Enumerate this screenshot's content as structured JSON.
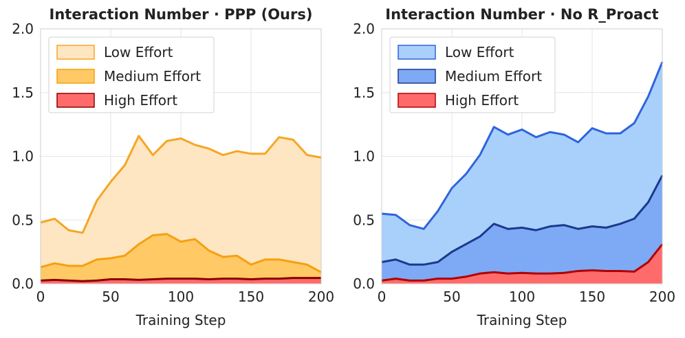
{
  "chart_data": [
    {
      "type": "area",
      "title": "Interaction Number · PPP (Ours)",
      "xlabel": "Training Step",
      "ylabel": "",
      "xlim": [
        0,
        200
      ],
      "ylim": [
        0,
        2.0
      ],
      "xticks": [
        "0",
        "50",
        "100",
        "150",
        "200"
      ],
      "yticks": [
        "0.0",
        "0.5",
        "1.0",
        "1.5",
        "2.0"
      ],
      "grid": true,
      "legend_position": "top-left",
      "x": [
        0,
        10,
        20,
        30,
        40,
        50,
        60,
        70,
        80,
        90,
        100,
        110,
        120,
        130,
        140,
        150,
        160,
        170,
        180,
        190,
        200
      ],
      "series": [
        {
          "name": "Low Effort",
          "fill": "#fee6c2",
          "line": "#f5a623",
          "values": [
            0.48,
            0.51,
            0.42,
            0.4,
            0.65,
            0.8,
            0.93,
            1.16,
            1.01,
            1.12,
            1.14,
            1.09,
            1.06,
            1.01,
            1.04,
            1.02,
            1.02,
            1.15,
            1.13,
            1.01,
            0.99
          ]
        },
        {
          "name": "Medium Effort",
          "fill": "#ffc966",
          "line": "#f5a00f",
          "values": [
            0.13,
            0.16,
            0.14,
            0.14,
            0.19,
            0.2,
            0.22,
            0.31,
            0.38,
            0.39,
            0.33,
            0.35,
            0.26,
            0.21,
            0.22,
            0.15,
            0.19,
            0.19,
            0.17,
            0.15,
            0.09
          ]
        },
        {
          "name": "High Effort",
          "fill": "#ff6b6b",
          "line": "#8b0000",
          "values": [
            0.025,
            0.03,
            0.025,
            0.02,
            0.025,
            0.035,
            0.035,
            0.03,
            0.035,
            0.04,
            0.04,
            0.04,
            0.035,
            0.04,
            0.04,
            0.035,
            0.04,
            0.04,
            0.045,
            0.045,
            0.045
          ]
        }
      ]
    },
    {
      "type": "area",
      "title": "Interaction Number · No R_Proact",
      "xlabel": "Training Step",
      "ylabel": "",
      "xlim": [
        0,
        200
      ],
      "ylim": [
        0,
        2.0
      ],
      "xticks": [
        "0",
        "50",
        "100",
        "150",
        "200"
      ],
      "yticks": [
        "0.0",
        "0.5",
        "1.0",
        "1.5",
        "2.0"
      ],
      "grid": true,
      "legend_position": "top-left",
      "x": [
        0,
        10,
        20,
        30,
        40,
        50,
        60,
        70,
        80,
        90,
        100,
        110,
        120,
        130,
        140,
        150,
        160,
        170,
        180,
        190,
        200
      ],
      "series": [
        {
          "name": "Low Effort",
          "fill": "#a9d0fb",
          "line": "#2f63dc",
          "values": [
            0.55,
            0.54,
            0.46,
            0.43,
            0.57,
            0.75,
            0.86,
            1.01,
            1.23,
            1.17,
            1.21,
            1.15,
            1.19,
            1.17,
            1.11,
            1.22,
            1.18,
            1.18,
            1.26,
            1.47,
            1.74
          ]
        },
        {
          "name": "Medium Effort",
          "fill": "#7ea9f5",
          "line": "#1a3a8c",
          "values": [
            0.17,
            0.19,
            0.15,
            0.15,
            0.17,
            0.25,
            0.31,
            0.37,
            0.47,
            0.43,
            0.44,
            0.42,
            0.45,
            0.46,
            0.43,
            0.45,
            0.44,
            0.47,
            0.51,
            0.64,
            0.85
          ]
        },
        {
          "name": "High Effort",
          "fill": "#ff6b6b",
          "line": "#b00000",
          "values": [
            0.025,
            0.04,
            0.025,
            0.025,
            0.04,
            0.04,
            0.055,
            0.08,
            0.09,
            0.08,
            0.085,
            0.08,
            0.08,
            0.085,
            0.1,
            0.105,
            0.1,
            0.1,
            0.095,
            0.17,
            0.31
          ]
        }
      ]
    }
  ]
}
